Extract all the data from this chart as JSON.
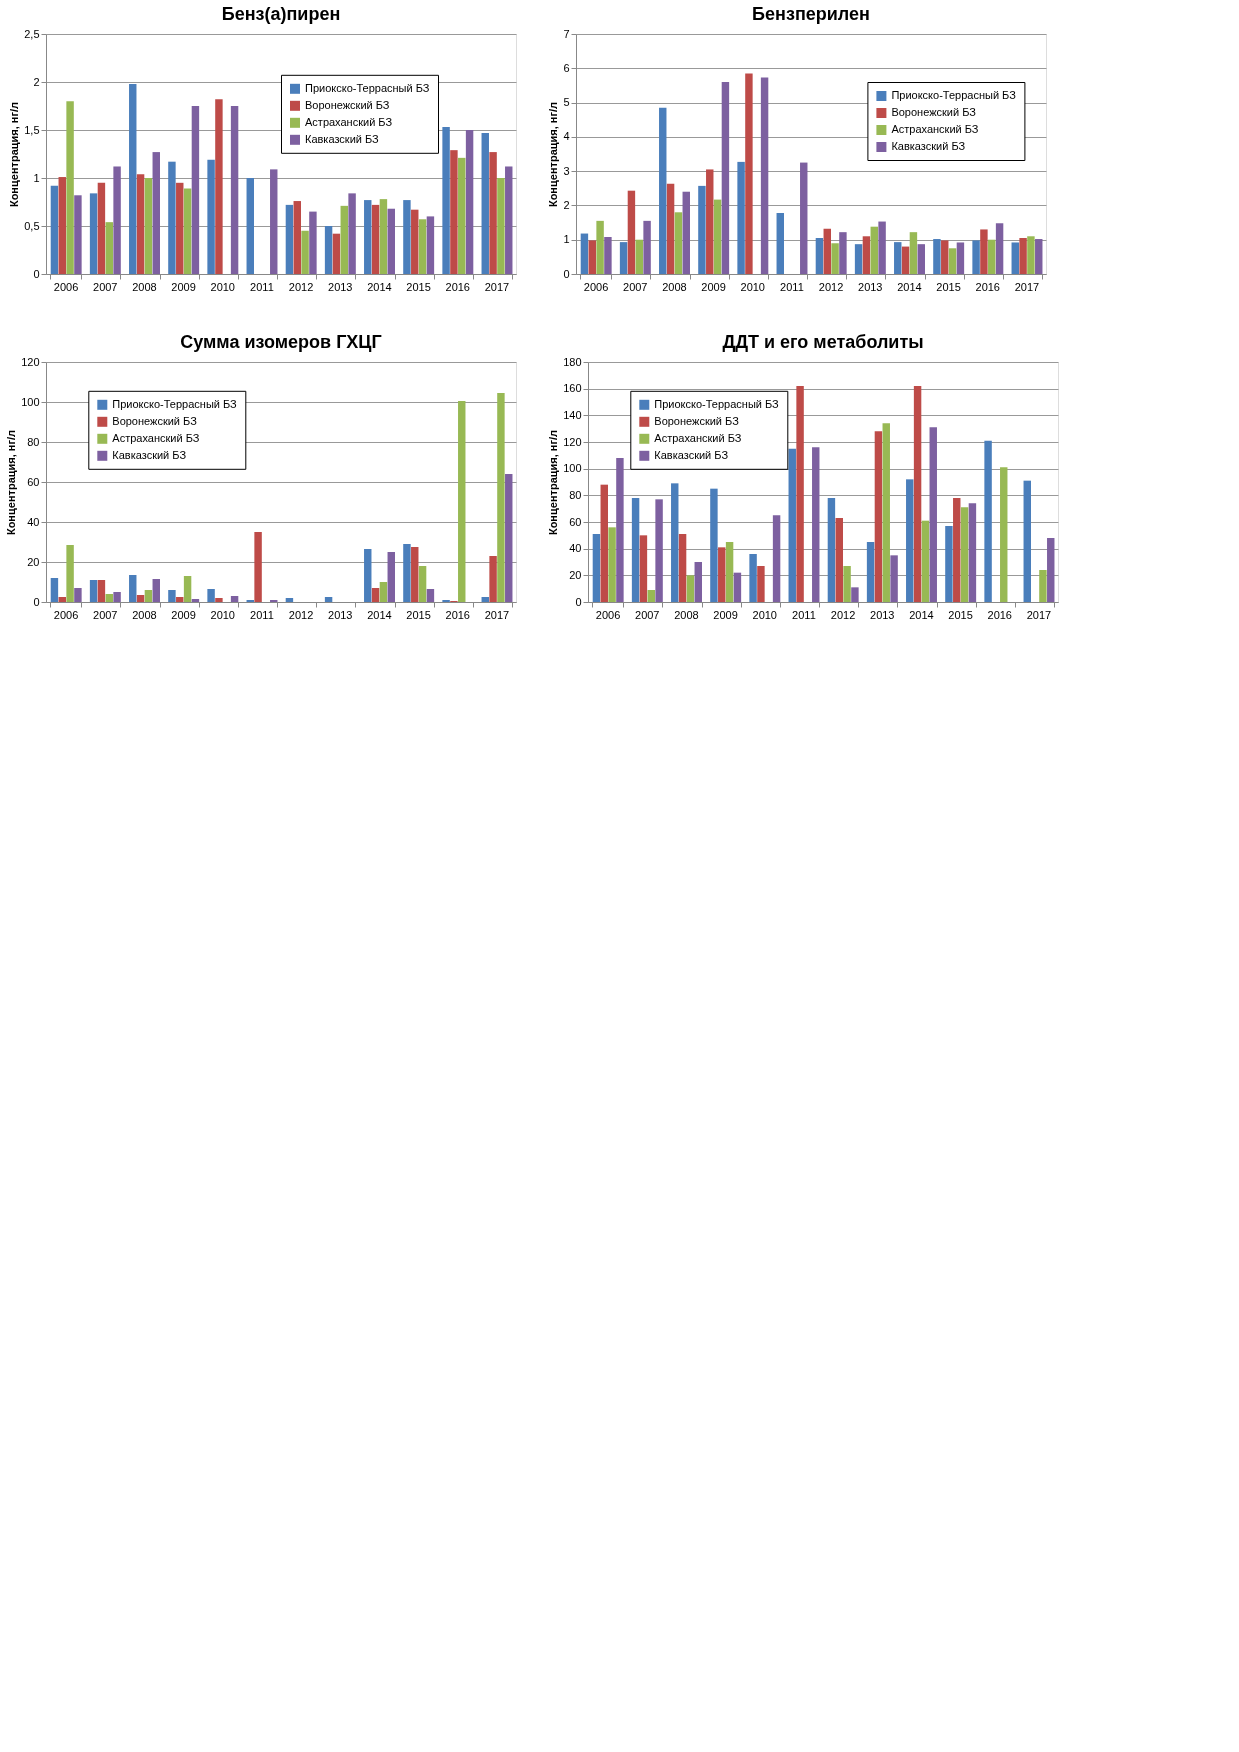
{
  "chart_data": [
    {
      "type": "bar",
      "title": "Бенз(а)пирен",
      "ylabel": "Концентрация, нг/л",
      "categories": [
        "2006",
        "2007",
        "2008",
        "2009",
        "2010",
        "2011",
        "2012",
        "2013",
        "2014",
        "2015",
        "2016",
        "2017"
      ],
      "ylim": [
        0,
        2.5
      ],
      "yticks": [
        0,
        {
          "value": 0.5,
          "label": "0,5"
        },
        1,
        {
          "value": 1.5,
          "label": "1,5"
        },
        2,
        {
          "value": 2.5,
          "label": "2,5"
        }
      ],
      "grid": "y",
      "legend": "top right",
      "series": [
        {
          "name": "Приокско-Террасный БЗ",
          "color": "#4a7ebb",
          "values": [
            0.92,
            0.84,
            1.98,
            1.17,
            1.19,
            1.0,
            0.72,
            0.5,
            0.77,
            0.77,
            1.53,
            1.47
          ]
        },
        {
          "name": "Воронежский БЗ",
          "color": "#be4b48",
          "values": [
            1.01,
            0.95,
            1.04,
            0.95,
            1.82,
            null,
            0.76,
            0.42,
            0.72,
            0.67,
            1.29,
            1.27
          ]
        },
        {
          "name": "Астраханский БЗ",
          "color": "#98b954",
          "values": [
            1.8,
            0.54,
            1.0,
            0.89,
            null,
            null,
            0.45,
            0.71,
            0.78,
            0.57,
            1.21,
            1.0
          ]
        },
        {
          "name": "Кавказский БЗ",
          "color": "#7d60a0",
          "values": [
            0.82,
            1.12,
            1.27,
            1.75,
            1.75,
            1.09,
            0.65,
            0.84,
            0.68,
            0.6,
            1.5,
            1.12
          ]
        }
      ]
    },
    {
      "type": "bar",
      "title": "Бензперилен",
      "ylabel": "Концентрация, нг/л",
      "categories": [
        "2006",
        "2007",
        "2008",
        "2009",
        "2010",
        "2011",
        "2012",
        "2013",
        "2014",
        "2015",
        "2016",
        "2017"
      ],
      "ylim": [
        0,
        7
      ],
      "yticks": [
        0,
        1,
        2,
        3,
        4,
        5,
        6,
        7
      ],
      "grid": "y",
      "legend": "right",
      "series": [
        {
          "name": "Приокско-Террасный БЗ",
          "color": "#4a7ebb",
          "values": [
            1.18,
            0.93,
            4.85,
            2.57,
            3.27,
            1.78,
            1.05,
            0.87,
            0.93,
            1.02,
            0.98,
            0.92
          ]
        },
        {
          "name": "Воронежский БЗ",
          "color": "#be4b48",
          "values": [
            0.98,
            2.43,
            2.63,
            3.05,
            5.85,
            null,
            1.32,
            1.1,
            0.8,
            0.98,
            1.3,
            1.05
          ]
        },
        {
          "name": "Астраханский БЗ",
          "color": "#98b954",
          "values": [
            1.55,
            1.0,
            1.8,
            2.17,
            null,
            null,
            0.9,
            1.38,
            1.22,
            0.75,
            1.0,
            1.1
          ]
        },
        {
          "name": "Кавказский БЗ",
          "color": "#7d60a0",
          "values": [
            1.08,
            1.55,
            2.4,
            5.6,
            5.73,
            3.25,
            1.22,
            1.53,
            0.87,
            0.92,
            1.48,
            1.02
          ]
        }
      ]
    },
    {
      "type": "bar",
      "title": "Сумма изомеров ГХЦГ",
      "ylabel": "Концентрация, нг/л",
      "categories": [
        "2006",
        "2007",
        "2008",
        "2009",
        "2010",
        "2011",
        "2012",
        "2013",
        "2014",
        "2015",
        "2016",
        "2017"
      ],
      "ylim": [
        0,
        120
      ],
      "yticks": [
        0,
        20,
        40,
        60,
        80,
        100,
        120
      ],
      "grid": "y",
      "legend": "top left",
      "series": [
        {
          "name": "Приокско-Террасный БЗ",
          "color": "#4a7ebb",
          "values": [
            12,
            11,
            13.5,
            6,
            6.5,
            1,
            2,
            2.5,
            26.5,
            29,
            1,
            2.5
          ]
        },
        {
          "name": "Воронежский БЗ",
          "color": "#be4b48",
          "values": [
            2.5,
            11,
            3.5,
            2.5,
            2,
            35,
            null,
            null,
            7,
            27.5,
            0.5,
            23
          ]
        },
        {
          "name": "Астраханский БЗ",
          "color": "#98b954",
          "values": [
            28.5,
            4,
            6,
            13,
            null,
            null,
            null,
            null,
            10,
            18,
            100.5,
            104.5
          ]
        },
        {
          "name": "Кавказский БЗ",
          "color": "#7d60a0",
          "values": [
            7,
            5,
            11.5,
            1.5,
            3,
            1,
            null,
            null,
            25,
            6.5,
            null,
            64
          ]
        }
      ]
    },
    {
      "type": "bar",
      "title": "ДДТ и его метаболиты",
      "ylabel": "Концентрация, нг/л",
      "categories": [
        "2006",
        "2007",
        "2008",
        "2009",
        "2010",
        "2011",
        "2012",
        "2013",
        "2014",
        "2015",
        "2016",
        "2017"
      ],
      "ylim": [
        0,
        180
      ],
      "yticks": [
        0,
        20,
        40,
        60,
        80,
        100,
        120,
        140,
        160,
        180
      ],
      "grid": "y",
      "legend": "top left",
      "series": [
        {
          "name": "Приокско-Террасный БЗ",
          "color": "#4a7ebb",
          "values": [
            51,
            78,
            89,
            85,
            36,
            115,
            78,
            45,
            92,
            57,
            121,
            91
          ]
        },
        {
          "name": "Воронежский БЗ",
          "color": "#be4b48",
          "values": [
            88,
            50,
            51,
            41,
            27,
            162,
            63,
            128,
            162,
            78,
            null,
            null
          ]
        },
        {
          "name": "Астраханский БЗ",
          "color": "#98b954",
          "values": [
            56,
            9,
            20,
            45,
            null,
            null,
            27,
            134,
            61,
            71,
            101,
            24
          ]
        },
        {
          "name": "Кавказский БЗ",
          "color": "#7d60a0",
          "values": [
            108,
            77,
            30,
            22,
            65,
            116,
            11,
            35,
            131,
            74,
            null,
            48
          ]
        }
      ]
    }
  ]
}
